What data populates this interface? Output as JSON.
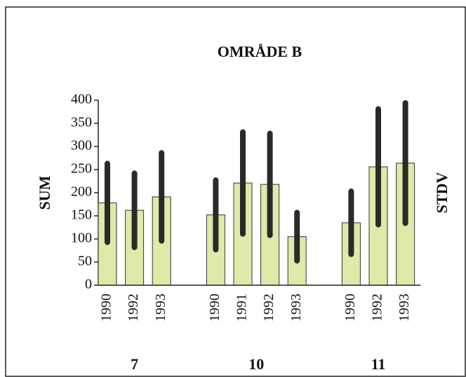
{
  "chart_data": {
    "type": "bar",
    "title": "OMRÅDE B",
    "ylabel": "SUM",
    "y2label": "STDV",
    "groups": [
      {
        "label": "7",
        "categories": [
          "1990",
          "1992",
          "1993"
        ],
        "values": [
          178,
          162,
          191
        ],
        "errors": [
          85,
          80,
          95
        ]
      },
      {
        "label": "10",
        "categories": [
          "1990",
          "1991",
          "1992",
          "1993"
        ],
        "values": [
          152,
          221,
          218,
          105
        ],
        "errors": [
          75,
          110,
          110,
          52
        ]
      },
      {
        "label": "11",
        "categories": [
          "1990",
          "1992",
          "1993"
        ],
        "values": [
          135,
          256,
          264
        ],
        "errors": [
          68,
          125,
          130
        ]
      }
    ],
    "color": "#dfe9a8",
    "error_color": "#2a2a2a",
    "ylim": [
      0,
      400
    ],
    "yticks": [
      0,
      50,
      100,
      150,
      200,
      250,
      300,
      350,
      400
    ]
  }
}
